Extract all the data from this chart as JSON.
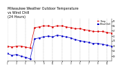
{
  "title": "Milwaukee Weather Outdoor Temperature\nvs Wind Chill\n(24 Hours)",
  "title_fontsize": 3.5,
  "background_color": "#ffffff",
  "grid_color": "#aaaaaa",
  "temp_color": "#dd0000",
  "windchill_color": "#0000cc",
  "temp_data": [
    [
      0,
      30
    ],
    [
      1,
      29
    ],
    [
      2,
      30
    ],
    [
      3,
      30
    ],
    [
      4,
      29
    ],
    [
      5,
      28
    ],
    [
      6,
      50
    ],
    [
      7,
      51
    ],
    [
      8,
      52
    ],
    [
      9,
      52
    ],
    [
      10,
      51
    ],
    [
      11,
      52
    ],
    [
      12,
      52
    ],
    [
      13,
      51
    ],
    [
      14,
      50
    ],
    [
      15,
      49
    ],
    [
      16,
      49
    ],
    [
      17,
      48
    ],
    [
      18,
      47
    ],
    [
      19,
      46
    ],
    [
      20,
      46
    ],
    [
      21,
      46
    ],
    [
      22,
      45
    ],
    [
      23,
      44
    ]
  ],
  "windchill_data": [
    [
      0,
      22
    ],
    [
      1,
      20
    ],
    [
      2,
      21
    ],
    [
      3,
      19
    ],
    [
      4,
      18
    ],
    [
      5,
      16
    ],
    [
      6,
      38
    ],
    [
      7,
      39
    ],
    [
      8,
      40
    ],
    [
      9,
      41
    ],
    [
      10,
      40
    ],
    [
      11,
      42
    ],
    [
      12,
      41
    ],
    [
      13,
      40
    ],
    [
      14,
      39
    ],
    [
      15,
      37
    ],
    [
      16,
      36
    ],
    [
      17,
      35
    ],
    [
      18,
      34
    ],
    [
      19,
      33
    ],
    [
      20,
      33
    ],
    [
      21,
      32
    ],
    [
      22,
      31
    ],
    [
      23,
      30
    ]
  ],
  "ymin": 14,
  "ymax": 60,
  "xmin": 0,
  "xmax": 23,
  "x_tick_positions": [
    0,
    2,
    4,
    6,
    8,
    10,
    12,
    14,
    16,
    18,
    20,
    22
  ],
  "x_tick_labels": [
    "1",
    "3",
    "5",
    "7",
    "9",
    "11",
    "1",
    "3",
    "5",
    "7",
    "9",
    "11"
  ],
  "y_tick_positions": [
    19,
    25,
    30,
    36,
    41,
    47,
    52,
    57
  ],
  "legend_temp_label": "Temp",
  "legend_wc_label": "Wind Chill"
}
